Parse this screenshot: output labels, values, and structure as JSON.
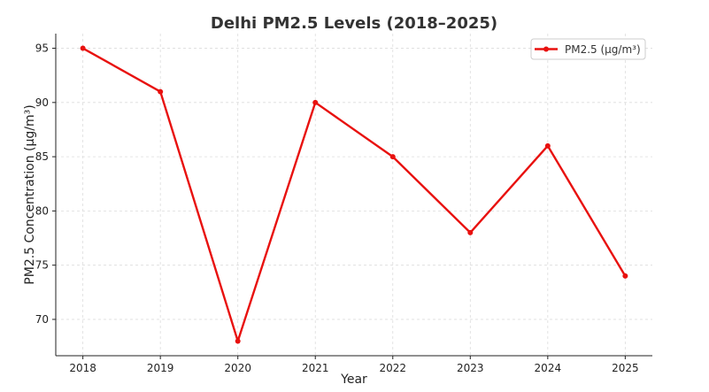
{
  "chart_data": {
    "type": "line",
    "title": "Delhi PM2.5 Levels (2018–2025)",
    "xlabel": "Year",
    "ylabel": "PM2.5 Concentration (µg/m³)",
    "x": [
      2018,
      2019,
      2020,
      2021,
      2022,
      2023,
      2024,
      2025
    ],
    "x_tick_labels": [
      "2018",
      "2019",
      "2020",
      "2021",
      "2022",
      "2023",
      "2024",
      "2025"
    ],
    "y_ticks": [
      70,
      75,
      80,
      85,
      90,
      95
    ],
    "y_tick_labels": [
      "70",
      "75",
      "80",
      "85",
      "90",
      "95"
    ],
    "xlim": [
      2017.65,
      2025.35
    ],
    "ylim": [
      66.65,
      96.35
    ],
    "series": [
      {
        "name": "PM2.5 (µg/m³)",
        "values": [
          95,
          91,
          68,
          90,
          85,
          78,
          86,
          74
        ],
        "color": "#e8110f",
        "marker": "circle"
      }
    ],
    "grid": true,
    "legend_position": "top-right"
  }
}
